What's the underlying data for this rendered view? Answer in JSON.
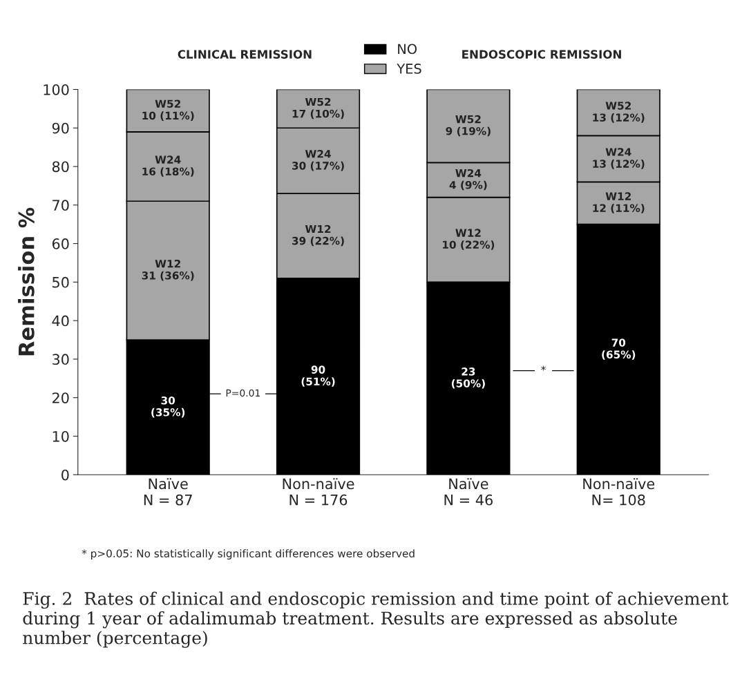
{
  "chart_data": {
    "type": "bar",
    "stacked": true,
    "categories": [
      "Naïve\nN = 87",
      "Non-naïve\nN = 176",
      "Naïve\nN = 46",
      "Non-naïve\nN= 108"
    ],
    "series": [
      {
        "name": "NO",
        "color": "#000000",
        "values": [
          35,
          51,
          50,
          65
        ],
        "value_labels": [
          "30\n(35%)",
          "90\n(51%)",
          "23\n(50%)",
          "70\n(65%)"
        ]
      },
      {
        "name": "YES",
        "color": "#a6a6a6",
        "values": [
          36,
          22,
          22,
          11
        ],
        "value_labels": [
          "W12\n31 (36%)",
          "W12\n39 (22%)",
          "W12\n10 (22%)",
          "W12\n12 (11%)"
        ]
      },
      {
        "color": "#a6a6a6",
        "values": [
          18,
          17,
          9,
          12
        ],
        "value_labels": [
          "W24\n16 (18%)",
          "W24\n30 (17%)",
          "W24\n4 (9%)",
          "W24\n13 (12%)"
        ]
      },
      {
        "color": "#a6a6a6",
        "values": [
          11,
          10,
          19,
          12
        ],
        "value_labels": [
          "W52\n10 (11%)",
          "W52\n17 (10%)",
          "W52\n9 (19%)",
          "W52\n13 (12%)"
        ]
      }
    ],
    "ylabel": "Remission %",
    "ylim": [
      0,
      100
    ],
    "yticks": [
      0,
      10,
      20,
      30,
      40,
      50,
      60,
      70,
      80,
      90,
      100
    ],
    "grid": false,
    "legend": "top",
    "annotations": [
      "CLINICAL REMISSION",
      "ENDOSCOPIC REMISSION",
      "P=0.01",
      "*",
      "* p>0.05: No statistically significant differences were observed",
      "Fig. 2  Rates of clinical and endoscopic remission and time point of achievement during 1 year of adalimumab treatment. Results are expressed as absolute number (percentage)"
    ]
  }
}
